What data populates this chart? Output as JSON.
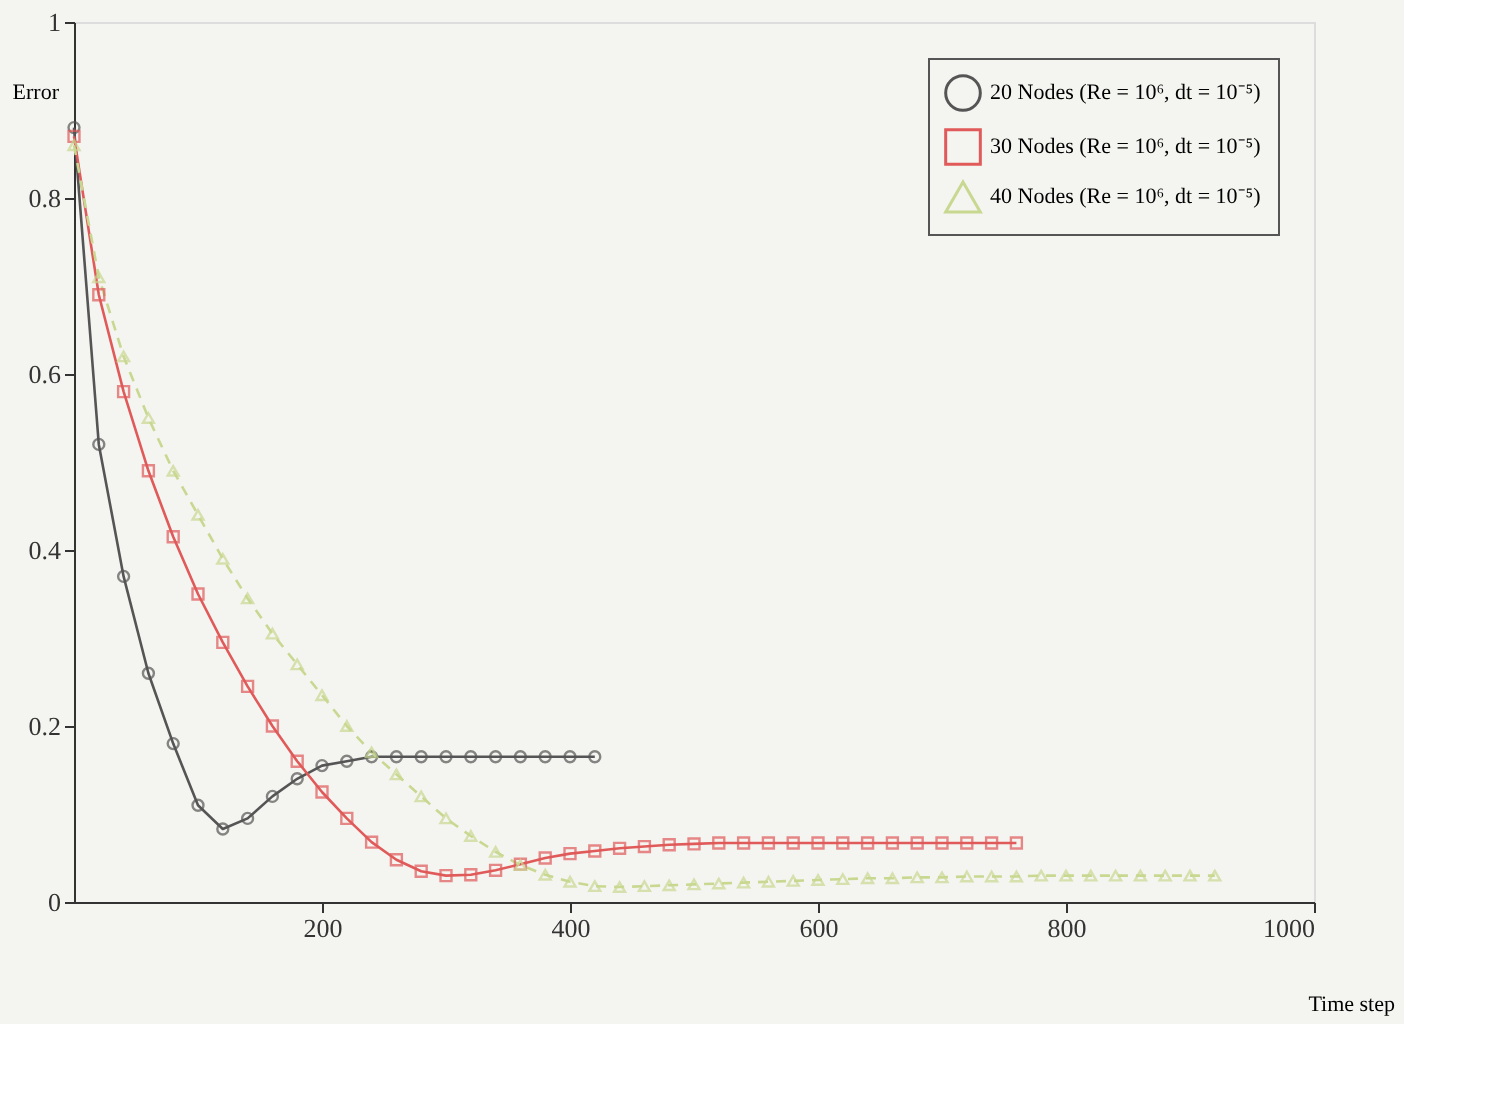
{
  "chart_data": {
    "type": "line",
    "xlabel": "Time step",
    "ylabel": "Error",
    "xlim": [
      0,
      1000
    ],
    "ylim": [
      0,
      1
    ],
    "xticks": [
      200,
      400,
      600,
      800,
      1000
    ],
    "yticks": [
      0,
      0.2,
      0.4,
      0.6,
      0.8,
      1
    ],
    "grid": false,
    "legend": "top right",
    "series": [
      {
        "name": "20 Nodes (Re = 10⁶, dt = 10⁻⁵)",
        "color": "#555555",
        "marker": "circle",
        "line_style": "solid",
        "x": [
          0,
          20,
          40,
          60,
          80,
          100,
          120,
          140,
          160,
          180,
          200,
          220,
          240,
          260,
          280,
          300,
          320,
          340,
          360,
          380,
          400,
          420
        ],
        "values": [
          0.88,
          0.52,
          0.37,
          0.26,
          0.18,
          0.11,
          0.083,
          0.095,
          0.12,
          0.14,
          0.155,
          0.16,
          0.165,
          0.165,
          0.165,
          0.165,
          0.165,
          0.165,
          0.165,
          0.165,
          0.165,
          0.165
        ]
      },
      {
        "name": "30 Nodes (Re = 10⁶, dt = 10⁻⁵)",
        "color": "#e05a5a",
        "marker": "square",
        "line_style": "solid",
        "x": [
          0,
          20,
          40,
          60,
          80,
          100,
          120,
          140,
          160,
          180,
          200,
          220,
          240,
          260,
          280,
          300,
          320,
          340,
          360,
          380,
          400,
          420,
          440,
          460,
          480,
          500,
          520,
          540,
          560,
          580,
          600,
          620,
          640,
          660,
          680,
          700,
          720,
          740,
          760
        ],
        "values": [
          0.87,
          0.69,
          0.58,
          0.49,
          0.415,
          0.35,
          0.295,
          0.245,
          0.2,
          0.16,
          0.125,
          0.095,
          0.068,
          0.048,
          0.035,
          0.03,
          0.031,
          0.036,
          0.043,
          0.05,
          0.055,
          0.058,
          0.061,
          0.063,
          0.065,
          0.066,
          0.067,
          0.067,
          0.067,
          0.067,
          0.067,
          0.067,
          0.067,
          0.067,
          0.067,
          0.067,
          0.067,
          0.067,
          0.067
        ]
      },
      {
        "name": "40 Nodes (Re = 10⁶, dt = 10⁻⁵)",
        "color": "#c8d890",
        "marker": "triangle",
        "line_style": "dashed",
        "x": [
          0,
          20,
          40,
          60,
          80,
          100,
          120,
          140,
          160,
          180,
          200,
          220,
          240,
          260,
          280,
          300,
          320,
          340,
          360,
          380,
          400,
          420,
          440,
          460,
          480,
          500,
          520,
          540,
          560,
          580,
          600,
          620,
          640,
          660,
          680,
          700,
          720,
          740,
          760,
          780,
          800,
          820,
          840,
          860,
          880,
          900,
          920
        ],
        "values": [
          0.86,
          0.71,
          0.62,
          0.55,
          0.49,
          0.44,
          0.39,
          0.345,
          0.305,
          0.27,
          0.235,
          0.2,
          0.17,
          0.145,
          0.12,
          0.095,
          0.075,
          0.057,
          0.042,
          0.031,
          0.023,
          0.018,
          0.017,
          0.018,
          0.019,
          0.02,
          0.021,
          0.022,
          0.023,
          0.024,
          0.025,
          0.026,
          0.027,
          0.027,
          0.028,
          0.028,
          0.029,
          0.029,
          0.029,
          0.03,
          0.03,
          0.03,
          0.03,
          0.03,
          0.03,
          0.03,
          0.03
        ]
      }
    ]
  }
}
